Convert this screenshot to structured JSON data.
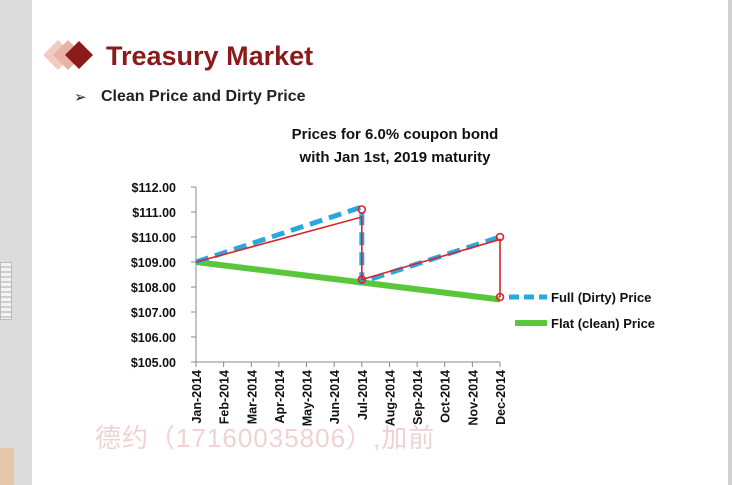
{
  "slide": {
    "title": "Treasury Market",
    "bullet": "Clean Price and Dirty Price",
    "watermark": "德约（17160035806）,加前"
  },
  "colors": {
    "title": "#8b1a1a",
    "logo_dark": "#8b1a1a",
    "logo_light": "#e8b3a5",
    "dirty": "#29a8e0",
    "clean": "#5ac73a",
    "annotation": "#d8262d"
  },
  "chart_data": {
    "type": "line",
    "title": [
      "Prices for 6.0% coupon  bond",
      "with Jan 1st, 2019 maturity"
    ],
    "categories": [
      "Jan-2014",
      "Feb-2014",
      "Mar-2014",
      "Apr-2014",
      "May-2014",
      "Jun-2014",
      "Jul-2014",
      "Aug-2014",
      "Sep-2014",
      "Oct-2014",
      "Nov-2014",
      "Dec-2014"
    ],
    "ylim": [
      105,
      112
    ],
    "yticks": [
      "$105.00",
      "$106.00",
      "$107.00",
      "$108.00",
      "$109.00",
      "$110.00",
      "$111.00",
      "$112.00"
    ],
    "series": [
      {
        "name": "Full (Dirty) Price",
        "style": "dashed",
        "points": [
          [
            0,
            109.0
          ],
          [
            6,
            111.2
          ],
          [
            6,
            108.2
          ],
          [
            11,
            110.0
          ]
        ]
      },
      {
        "name": "Flat (clean) Price",
        "style": "solid",
        "points": [
          [
            0,
            109.0
          ],
          [
            11,
            107.5
          ]
        ]
      }
    ],
    "annotation": {
      "points": [
        [
          0,
          109.0
        ],
        [
          6,
          110.8
        ],
        [
          6,
          108.3
        ],
        [
          11,
          109.9
        ],
        [
          11,
          107.6
        ]
      ],
      "circles": [
        [
          6,
          111.1
        ],
        [
          6,
          108.3
        ],
        [
          11,
          110.0
        ],
        [
          11,
          107.6
        ]
      ]
    },
    "legend_position": "right"
  }
}
